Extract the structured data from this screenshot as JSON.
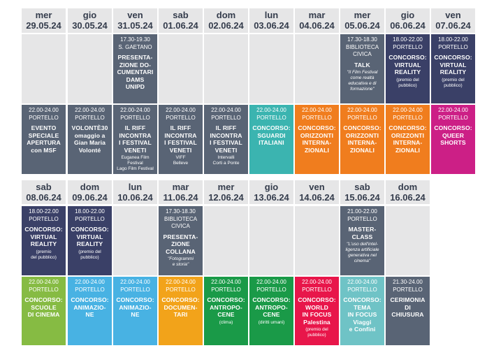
{
  "colors": {
    "header_bg": "#e6e6e7",
    "navy": "#3a4067",
    "slate": "#596475",
    "teal": "#3bb4b0",
    "orange": "#f07d1e",
    "magenta": "#cc1f86",
    "green_lime": "#86bb43",
    "light_blue": "#48b2e3",
    "gold": "#f2a31a",
    "green": "#1a9a48",
    "red": "#e8164a",
    "aqua": "#6fc3c6"
  },
  "rows": [
    {
      "headers": [
        {
          "day": "mer",
          "date": "29.05.24"
        },
        {
          "day": "gio",
          "date": "30.05.24"
        },
        {
          "day": "ven",
          "date": "31.05.24"
        },
        {
          "day": "sab",
          "date": "01.06.24"
        },
        {
          "day": "dom",
          "date": "02.06.24"
        },
        {
          "day": "lun",
          "date": "03.06.24"
        },
        {
          "day": "mar",
          "date": "04.06.24"
        },
        {
          "day": "mer",
          "date": "05.06.24"
        },
        {
          "day": "gio",
          "date": "06.06.24"
        },
        {
          "day": "ven",
          "date": "07.06.24"
        }
      ],
      "slots": [
        [
          null,
          null,
          {
            "color": "slate",
            "time": "17.30-19.30",
            "venue": "S. GAETANO",
            "title": "PRESENTA-\nZIONE DO-\nCUMENTARI\nDAMS\nUNIPD",
            "note": ""
          },
          null,
          null,
          null,
          null,
          {
            "color": "slate",
            "time": "17.30-18.30",
            "venue": "BIBLIOTECA\nCIVICA",
            "title": "TALK",
            "note": "\"Il Film Festival\ncome realtà\neducativa e di\nformazione\""
          },
          {
            "color": "navy",
            "time": "18.00-22.00",
            "venue": "PORTELLO",
            "title": "CONCORSO:\nVIRTUAL\nREALITY",
            "note2": "(premio del\npubblico)"
          },
          {
            "color": "navy",
            "time": "18.00-22.00",
            "venue": "PORTELLO",
            "title": "CONCORSO:\nVIRTUAL\nREALITY",
            "note2": "(premio del\npubblico)"
          }
        ],
        [
          {
            "color": "slate",
            "time": "22.00-24.00",
            "venue": "PORTELLO",
            "title": "EVENTO\nSPECIALE\nAPERTURA\ncon MSF"
          },
          {
            "color": "slate",
            "time": "22.00-24.00",
            "venue": "PORTELLO",
            "title": "VOLONTÈ30\nomaggio a\nGian Maria\nVolonté"
          },
          {
            "color": "slate",
            "time": "22.00-24.00",
            "venue": "PORTELLO",
            "title": "IL RIFF\nINCONTRA\nI FESTIVAL\nVENETI",
            "note2": "Euganea Film Festival\nLago Film Festival"
          },
          {
            "color": "slate",
            "time": "22.00-24.00",
            "venue": "PORTELLO",
            "title": "IL RIFF\nINCONTRA\nI FESTIVAL\nVENETI",
            "note2": "VIFF\nBelleve"
          },
          {
            "color": "slate",
            "time": "22.00-24.00",
            "venue": "PORTELLO",
            "title": "IL RIFF\nINCONTRA\nI FESTIVAL\nVENETI",
            "note2": "Intervalli\nCorti a Ponte"
          },
          {
            "color": "teal",
            "time": "22.00-24.00",
            "venue": "PORTELLO",
            "title": "CONCORSO:\nSGUARDI\nITALIANI"
          },
          {
            "color": "orange",
            "time": "22.00-24.00",
            "venue": "PORTELLO",
            "title": "CONCORSO:\nORIZZONTI\nINTERNA-\nZIONALI"
          },
          {
            "color": "orange",
            "time": "22.00-24.00",
            "venue": "PORTELLO",
            "title": "CONCORSO:\nORIZZONTI\nINTERNA-\nZIONALI"
          },
          {
            "color": "orange",
            "time": "22.00-24.00",
            "venue": "PORTELLO",
            "title": "CONCORSO:\nORIZZONTI\nINTERNA-\nZIONALI"
          },
          {
            "color": "magenta",
            "time": "22.00-24.00",
            "venue": "PORTELLO",
            "title": "CONCORSO:\nQUEER\nSHORTS"
          }
        ]
      ]
    },
    {
      "headers": [
        {
          "day": "sab",
          "date": "08.06.24"
        },
        {
          "day": "dom",
          "date": "09.06.24"
        },
        {
          "day": "lun",
          "date": "10.06.24"
        },
        {
          "day": "mar",
          "date": "11.06.24"
        },
        {
          "day": "mer",
          "date": "12.06.24"
        },
        {
          "day": "gio",
          "date": "13.06.24"
        },
        {
          "day": "ven",
          "date": "14.06.24"
        },
        {
          "day": "sab",
          "date": "15.06.24"
        },
        {
          "day": "dom",
          "date": "16.06.24"
        }
      ],
      "slots": [
        [
          {
            "color": "navy",
            "time": "18.00-22.00",
            "venue": "PORTELLO",
            "title": "CONCORSO:\nVIRTUAL\nREALITY",
            "note2": "(premio\ndel pubblico)"
          },
          {
            "color": "navy",
            "time": "18.00-22.00",
            "venue": "PORTELLO",
            "title": "CONCORSO:\nVIRTUAL\nREALITY",
            "note2": "(premio del\npubblico)"
          },
          null,
          {
            "color": "slate",
            "time": "17.30-18.30",
            "venue": "BIBLIOTECA\nCIVICA",
            "title": "PRESENTA-\nZIONE\nCOLLANA",
            "note": "\"Fotogrammi\ne storia\""
          },
          null,
          null,
          null,
          {
            "color": "slate",
            "time": "21.00-22.00",
            "venue": "PORTELLO",
            "title": "MASTER-\nCLASS",
            "note": "\"L'uso dell'intel-\nligenza artificiale\ngenerativa nel\ncinema\""
          },
          null
        ],
        [
          {
            "color": "green_lime",
            "time": "22.00-24.00",
            "venue": "PORTELLO",
            "title": "CONCORSO:\nSCUOLE\nDI CINEMA"
          },
          {
            "color": "light_blue",
            "time": "22.00-24.00",
            "venue": "PORTELLO",
            "title": "CONCORSO:\nANIMAZIO-\nNE"
          },
          {
            "color": "light_blue",
            "time": "22.00-24.00",
            "venue": "PORTELLO",
            "title": "CONCORSO:\nANIMAZIO-\nNE"
          },
          {
            "color": "gold",
            "time": "22.00-24.00",
            "venue": "PORTELLO",
            "title": "CONCORSO:\nDOCUMEN-\nTARI"
          },
          {
            "color": "green",
            "time": "22.00-24.00",
            "venue": "PORTELLO",
            "title": "CONCORSO:\nANTROPO-\nCENE",
            "note2": "(clima)"
          },
          {
            "color": "green",
            "time": "22.00-24.00",
            "venue": "PORTELLO",
            "title": "CONCORSO:\nANTROPO-\nCENE",
            "note2": "(diritti umani)"
          },
          {
            "color": "red",
            "time": "22.00-24.00",
            "venue": "PORTELLO",
            "title": "CONCORSO:\nWORLD\nIN FOCUS\nPalestina",
            "note2": "(premio del\npubblico)"
          },
          {
            "color": "aqua",
            "time": "22.00-24.00",
            "venue": "PORTELLO",
            "title": "CONCORSO:\nTEMA\nIN FOCUS\nViaggi\ne Confini"
          },
          {
            "color": "slate",
            "time": "21.30-24.00",
            "venue": "PORTELLO",
            "title": "CERIMONIA\nDI\nCHIUSURA"
          }
        ]
      ]
    }
  ]
}
